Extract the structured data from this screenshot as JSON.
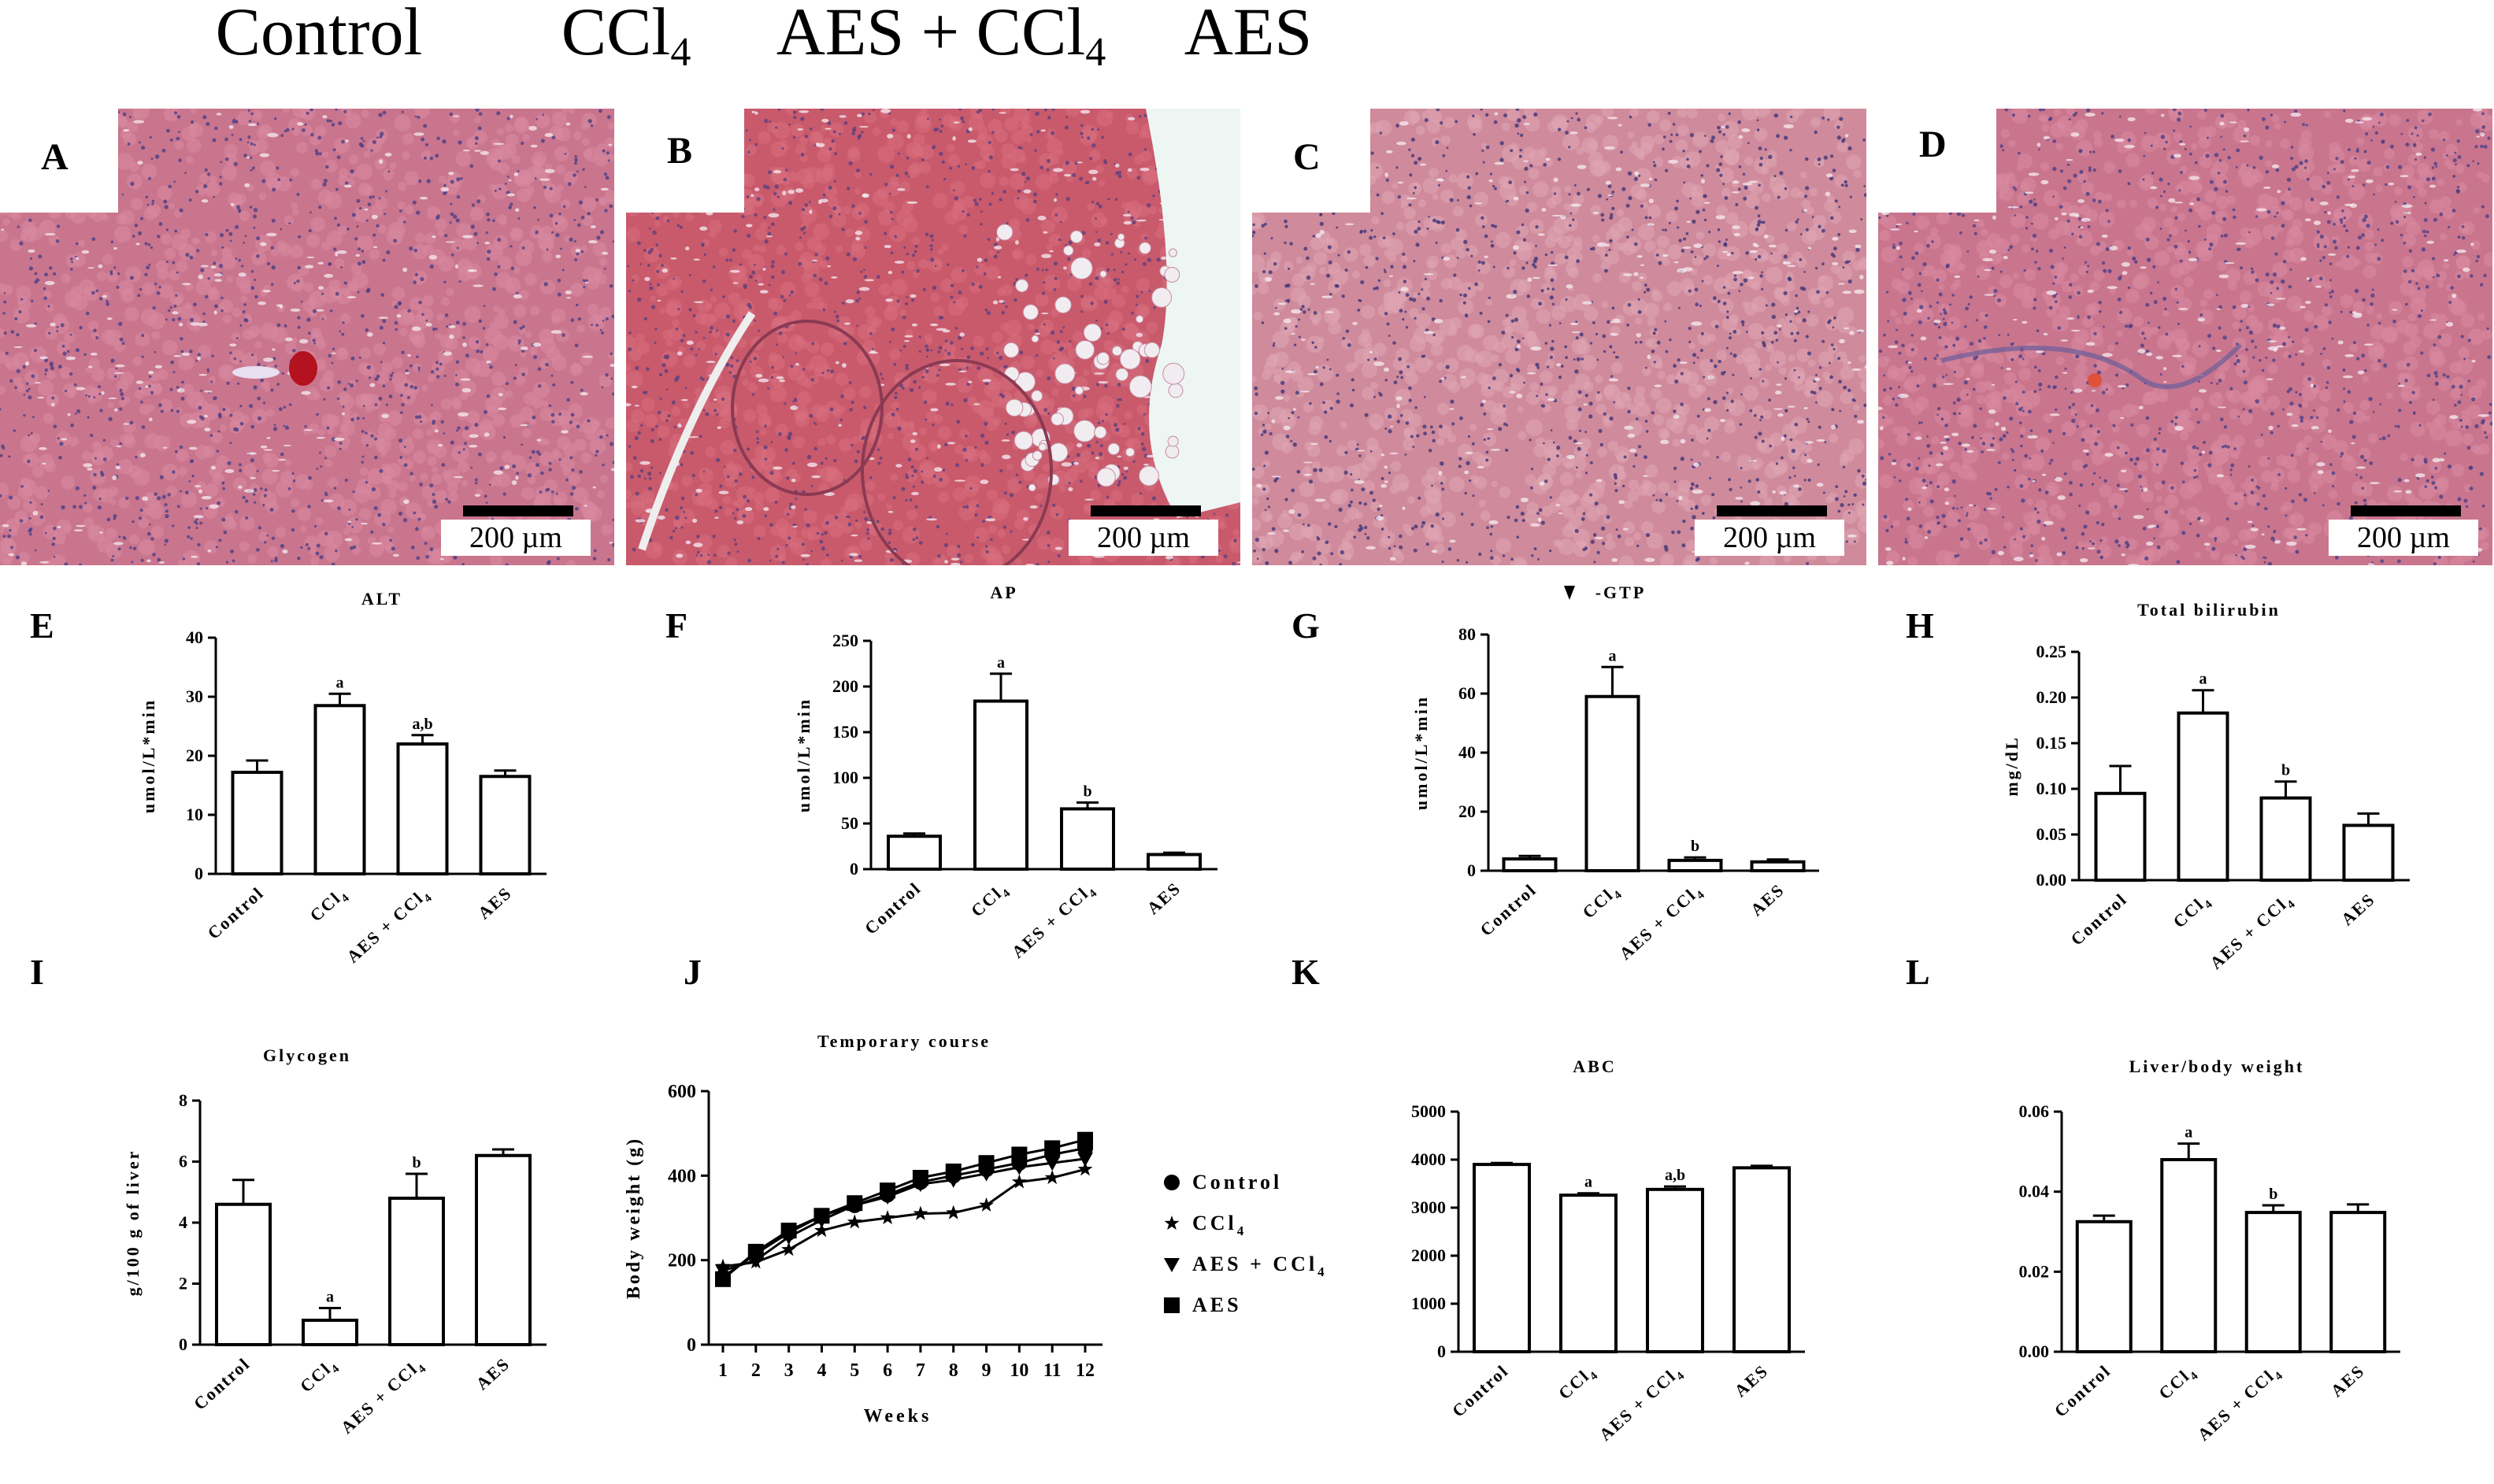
{
  "columns": [
    {
      "title": "Control",
      "sub": ""
    },
    {
      "title": "CCl",
      "sub": "4"
    },
    {
      "title": "AES + CCl",
      "sub": "4"
    },
    {
      "title": "AES",
      "sub": ""
    }
  ],
  "micrographs": [
    {
      "label": "A",
      "scale": "200 µm",
      "tone": "normal"
    },
    {
      "label": "B",
      "scale": "200 µm",
      "tone": "damaged"
    },
    {
      "label": "C",
      "scale": "200 µm",
      "tone": "recovering"
    },
    {
      "label": "D",
      "scale": "200 µm",
      "tone": "normal"
    }
  ],
  "colors": {
    "bars": "#ffffff",
    "ink": "#000000",
    "tissue": "#c0627a",
    "nuclei": "#5a4a8a"
  },
  "chart_data": [
    {
      "panel": "E",
      "type": "bar",
      "title": "ALT",
      "ylabel": "umol/L*min",
      "categories": [
        "Control",
        "CCl4",
        "AES + CCl4",
        "AES"
      ],
      "values": [
        17.2,
        28.5,
        22.0,
        16.5
      ],
      "errors": [
        2.0,
        2.0,
        1.5,
        1.0
      ],
      "annotations": [
        "",
        "a",
        "a,b",
        ""
      ],
      "ylim": [
        0,
        40
      ],
      "ticks": [
        0,
        10,
        20,
        30,
        40
      ]
    },
    {
      "panel": "F",
      "type": "bar",
      "title": "AP",
      "ylabel": "umol/L*min",
      "categories": [
        "Control",
        "CCl4",
        "AES + CCl4",
        "AES"
      ],
      "values": [
        36,
        184,
        66,
        16
      ],
      "errors": [
        3,
        30,
        7,
        2
      ],
      "annotations": [
        "",
        "a",
        "b",
        ""
      ],
      "ylim": [
        0,
        250
      ],
      "ticks": [
        0,
        50,
        100,
        150,
        200,
        250
      ]
    },
    {
      "panel": "G",
      "type": "bar",
      "title": "-GTP",
      "ylabel": "umol/L*min",
      "categories": [
        "Control",
        "CCl4",
        "AES + CCl4",
        "AES"
      ],
      "values": [
        4,
        59,
        3.5,
        3
      ],
      "errors": [
        1,
        10,
        1,
        0.8
      ],
      "annotations": [
        "",
        "a",
        "b",
        ""
      ],
      "ylim": [
        0,
        80
      ],
      "ticks": [
        0,
        20,
        40,
        60,
        80
      ]
    },
    {
      "panel": "H",
      "type": "bar",
      "title": "Total bilirubin",
      "ylabel": "mg/dL",
      "categories": [
        "Control",
        "CCl4",
        "AES + CCl4",
        "AES"
      ],
      "values": [
        0.095,
        0.183,
        0.09,
        0.06
      ],
      "errors": [
        0.03,
        0.025,
        0.018,
        0.013
      ],
      "annotations": [
        "",
        "a",
        "b",
        ""
      ],
      "ylim": [
        0,
        0.25
      ],
      "ticks": [
        "0.00",
        "0.05",
        "0.10",
        "0.15",
        "0.20",
        "0.25"
      ]
    },
    {
      "panel": "I",
      "type": "bar",
      "title": "Glycogen",
      "ylabel": "g/100 g of liver",
      "categories": [
        "Control",
        "CCl4",
        "AES + CCl4",
        "AES"
      ],
      "values": [
        4.6,
        0.8,
        4.8,
        6.2
      ],
      "errors": [
        0.8,
        0.4,
        0.8,
        0.2
      ],
      "annotations": [
        "",
        "a",
        "b",
        ""
      ],
      "ylim": [
        0,
        8
      ],
      "ticks": [
        0,
        2,
        4,
        6,
        8
      ]
    },
    {
      "panel": "J",
      "type": "line",
      "title": "Temporary course",
      "xlabel": "Weeks",
      "ylabel": "Body weight (g)",
      "x": [
        1,
        2,
        3,
        4,
        5,
        6,
        7,
        8,
        9,
        10,
        11,
        12
      ],
      "ylim": [
        0,
        600
      ],
      "ticks": [
        0,
        200,
        400,
        600
      ],
      "series": [
        {
          "name": "Control",
          "sub": "",
          "marker": "circle",
          "values": [
            160,
            215,
            265,
            305,
            330,
            355,
            385,
            400,
            415,
            430,
            450,
            465
          ]
        },
        {
          "name": "CCl",
          "sub": "4",
          "marker": "star",
          "values": [
            185,
            195,
            225,
            270,
            290,
            300,
            310,
            312,
            330,
            385,
            395,
            415
          ]
        },
        {
          "name": "AES + CCl",
          "sub": "4",
          "marker": "triangle-down",
          "values": [
            175,
            200,
            255,
            295,
            330,
            350,
            380,
            390,
            405,
            420,
            430,
            440
          ]
        },
        {
          "name": "AES",
          "sub": "",
          "marker": "square",
          "values": [
            155,
            220,
            270,
            305,
            335,
            365,
            395,
            410,
            430,
            450,
            465,
            485
          ]
        }
      ]
    },
    {
      "panel": "K",
      "type": "bar",
      "title": "ABC",
      "ylabel": "",
      "categories": [
        "Control",
        "CCl4",
        "AES + CCl4",
        "AES"
      ],
      "values": [
        3900,
        3260,
        3380,
        3830
      ],
      "errors": [
        30,
        40,
        60,
        40
      ],
      "annotations": [
        "",
        "a",
        "a,b",
        ""
      ],
      "ylim": [
        0,
        5000
      ],
      "ticks": [
        0,
        1000,
        2000,
        3000,
        4000,
        5000
      ]
    },
    {
      "panel": "L",
      "type": "bar",
      "title": "Liver/body weight",
      "ylabel": "",
      "categories": [
        "Control",
        "CCl4",
        "AES + CCl4",
        "AES"
      ],
      "values": [
        0.0325,
        0.048,
        0.0348,
        0.0348
      ],
      "errors": [
        0.0015,
        0.004,
        0.0018,
        0.002
      ],
      "annotations": [
        "",
        "a",
        "b",
        ""
      ],
      "ylim": [
        0,
        0.06
      ],
      "ticks": [
        "0.00",
        "0.02",
        "0.04",
        "0.06"
      ]
    }
  ]
}
